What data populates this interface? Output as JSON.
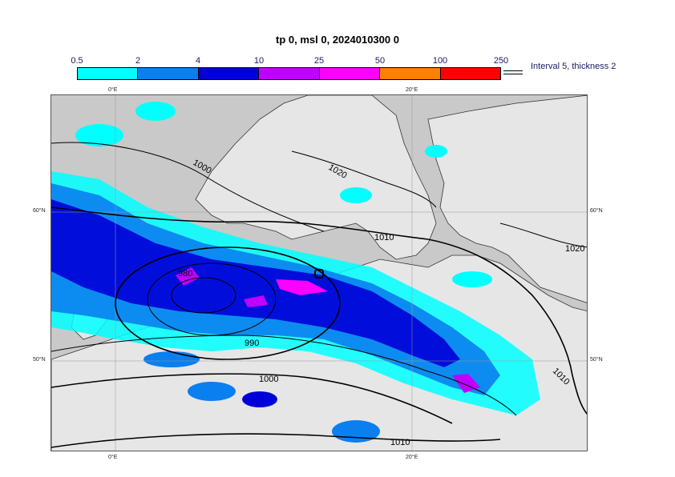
{
  "title": "tp 0, msl 0, 2024010300 0",
  "colorbar": {
    "ticks": [
      "0.5",
      "2",
      "4",
      "10",
      "25",
      "50",
      "100",
      "250"
    ],
    "colors": [
      "#00ffff",
      "#0a7ff0",
      "#0000d8",
      "#c000ff",
      "#ff00ff",
      "#ff8000",
      "#ff0000"
    ]
  },
  "legend_text": "Interval 5, thickness 2",
  "map": {
    "lon_labels": [
      "0°E",
      "20°E"
    ],
    "lat_labels": [
      "60°N",
      "50°N"
    ],
    "isobar_labels": [
      "1000",
      "1020",
      "1010",
      "980",
      "990",
      "1000",
      "1020",
      "1010",
      "1010"
    ],
    "colors": {
      "sea": "#c9c9c9",
      "land": "#e6e6e6",
      "coast": "#333333",
      "isobar": "#000000"
    }
  }
}
